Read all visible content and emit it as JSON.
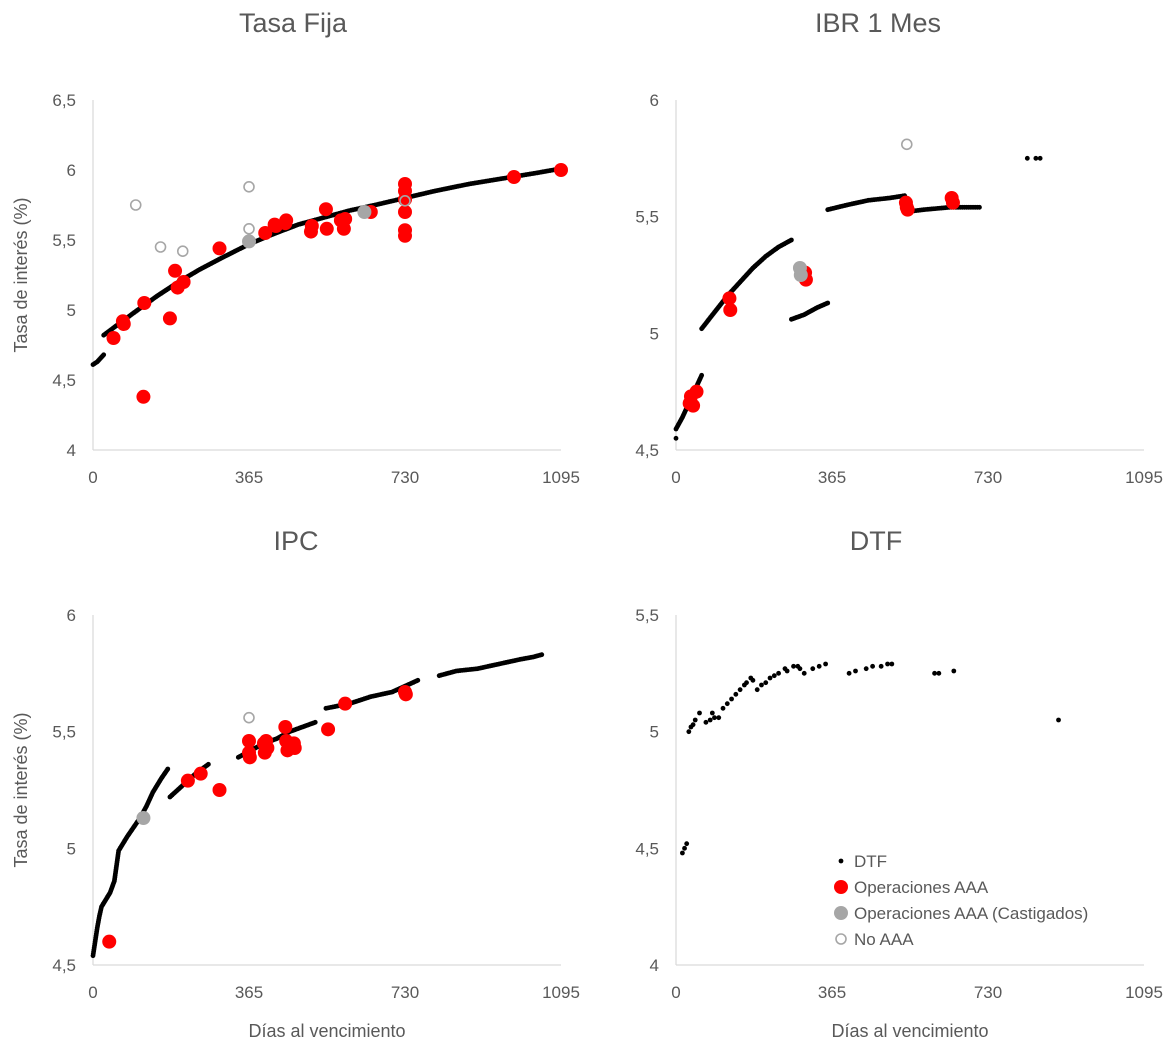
{
  "chart_data": [
    {
      "type": "scatter",
      "title": "Tasa Fija",
      "xlabel": "",
      "ylabel": "Tasa de interés (%)",
      "xlim": [
        0,
        1095
      ],
      "ylim": [
        4,
        6.5
      ],
      "xticks": [
        0,
        365,
        730,
        1095
      ],
      "xtick_labels": [
        "0",
        "365",
        "730",
        "1095"
      ],
      "yticks": [
        4,
        4.5,
        5,
        5.5,
        6,
        6.5
      ],
      "ytick_labels": [
        "4",
        "4,5",
        "5",
        "5,5",
        "6",
        "6,5"
      ],
      "grid": false,
      "curve_segments": [
        [
          [
            0,
            4.61
          ],
          [
            10,
            4.63
          ],
          [
            25,
            4.68
          ]
        ],
        [
          [
            25,
            4.82
          ],
          [
            60,
            4.9
          ],
          [
            100,
            4.99
          ],
          [
            150,
            5.1
          ],
          [
            200,
            5.2
          ],
          [
            250,
            5.29
          ],
          [
            300,
            5.37
          ],
          [
            365,
            5.47
          ],
          [
            420,
            5.54
          ],
          [
            480,
            5.61
          ],
          [
            540,
            5.66
          ],
          [
            600,
            5.71
          ],
          [
            660,
            5.75
          ],
          [
            730,
            5.8
          ],
          [
            800,
            5.85
          ],
          [
            880,
            5.9
          ],
          [
            960,
            5.94
          ],
          [
            1040,
            5.98
          ],
          [
            1095,
            6.01
          ]
        ]
      ],
      "series": [
        {
          "name": "Operaciones AAA",
          "points": [
            [
              48,
              4.8
            ],
            [
              70,
              4.92
            ],
            [
              72,
              4.9
            ],
            [
              120,
              5.05
            ],
            [
              118,
              4.38
            ],
            [
              180,
              4.94
            ],
            [
              192,
              5.28
            ],
            [
              198,
              5.16
            ],
            [
              212,
              5.2
            ],
            [
              296,
              5.44
            ],
            [
              403,
              5.55
            ],
            [
              425,
              5.61
            ],
            [
              428,
              5.6
            ],
            [
              450,
              5.62
            ],
            [
              452,
              5.64
            ],
            [
              510,
              5.56
            ],
            [
              512,
              5.6
            ],
            [
              545,
              5.72
            ],
            [
              547,
              5.58
            ],
            [
              580,
              5.64
            ],
            [
              587,
              5.58
            ],
            [
              590,
              5.65
            ],
            [
              650,
              5.7
            ],
            [
              730,
              5.9
            ],
            [
              730,
              5.85
            ],
            [
              730,
              5.79
            ],
            [
              730,
              5.7
            ],
            [
              730,
              5.57
            ],
            [
              730,
              5.53
            ],
            [
              985,
              5.95
            ],
            [
              1095,
              6.0
            ]
          ]
        },
        {
          "name": "Operaciones AAA (Castigados)",
          "points": [
            [
              365,
              5.49
            ],
            [
              635,
              5.7
            ]
          ]
        },
        {
          "name": "No AAA",
          "points": [
            [
              100,
              5.75
            ],
            [
              158,
              5.45
            ],
            [
              210,
              5.42
            ],
            [
              365,
              5.88
            ],
            [
              365,
              5.58
            ],
            [
              730,
              5.78
            ]
          ]
        }
      ]
    },
    {
      "type": "scatter",
      "title": "IBR 1 Mes",
      "xlabel": "",
      "ylabel": "",
      "xlim": [
        0,
        1095
      ],
      "ylim": [
        4.5,
        6
      ],
      "xticks": [
        0,
        365,
        730,
        1095
      ],
      "xtick_labels": [
        "0",
        "365",
        "730",
        "1095"
      ],
      "yticks": [
        4.5,
        5,
        5.5,
        6
      ],
      "ytick_labels": [
        "4,5",
        "5",
        "5,5",
        "6"
      ],
      "grid": false,
      "curve_segments": [
        [
          [
            0,
            4.59
          ],
          [
            15,
            4.64
          ],
          [
            30,
            4.7
          ],
          [
            45,
            4.76
          ],
          [
            60,
            4.82
          ]
        ],
        [
          [
            60,
            5.02
          ],
          [
            90,
            5.09
          ],
          [
            120,
            5.16
          ],
          [
            150,
            5.22
          ],
          [
            180,
            5.28
          ],
          [
            210,
            5.33
          ],
          [
            240,
            5.37
          ],
          [
            270,
            5.4
          ]
        ],
        [
          [
            270,
            5.06
          ],
          [
            300,
            5.08
          ],
          [
            330,
            5.11
          ],
          [
            355,
            5.13
          ]
        ],
        [
          [
            355,
            5.53
          ],
          [
            400,
            5.55
          ],
          [
            450,
            5.57
          ],
          [
            500,
            5.58
          ],
          [
            535,
            5.59
          ]
        ],
        [
          [
            535,
            5.52
          ],
          [
            580,
            5.53
          ],
          [
            640,
            5.54
          ],
          [
            710,
            5.54
          ]
        ]
      ],
      "isolated_points": [
        [
          0,
          4.55
        ],
        [
          822,
          5.75
        ],
        [
          842,
          5.75
        ],
        [
          852,
          5.75
        ]
      ],
      "series": [
        {
          "name": "Operaciones AAA",
          "points": [
            [
              32,
              4.7
            ],
            [
              35,
              4.73
            ],
            [
              40,
              4.69
            ],
            [
              48,
              4.75
            ],
            [
              125,
              5.15
            ],
            [
              127,
              5.1
            ],
            [
              302,
              5.26
            ],
            [
              304,
              5.23
            ],
            [
              538,
              5.56
            ],
            [
              540,
              5.54
            ],
            [
              542,
              5.53
            ],
            [
              645,
              5.58
            ],
            [
              648,
              5.56
            ]
          ]
        },
        {
          "name": "Operaciones AAA (Castigados)",
          "points": [
            [
              290,
              5.28
            ],
            [
              292,
              5.25
            ]
          ]
        },
        {
          "name": "No AAA",
          "points": [
            [
              540,
              5.81
            ]
          ]
        }
      ]
    },
    {
      "type": "scatter",
      "title": "IPC",
      "xlabel": "Días al vencimiento",
      "ylabel": "Tasa de interés (%)",
      "xlim": [
        0,
        1095
      ],
      "ylim": [
        4.5,
        6
      ],
      "xticks": [
        0,
        365,
        730,
        1095
      ],
      "xtick_labels": [
        "0",
        "365",
        "730",
        "1095"
      ],
      "yticks": [
        4.5,
        5,
        5.5,
        6
      ],
      "ytick_labels": [
        "4,5",
        "5",
        "5,5",
        "6"
      ],
      "grid": false,
      "curve_segments": [
        [
          [
            0,
            4.54
          ],
          [
            5,
            4.6
          ],
          [
            10,
            4.66
          ],
          [
            15,
            4.71
          ],
          [
            20,
            4.75
          ],
          [
            30,
            4.78
          ],
          [
            40,
            4.81
          ],
          [
            50,
            4.86
          ],
          [
            60,
            4.99
          ],
          [
            80,
            5.05
          ],
          [
            95,
            5.09
          ],
          [
            110,
            5.13
          ],
          [
            125,
            5.18
          ],
          [
            140,
            5.24
          ],
          [
            160,
            5.3
          ],
          [
            175,
            5.34
          ]
        ],
        [
          [
            180,
            5.22
          ],
          [
            210,
            5.27
          ],
          [
            240,
            5.32
          ],
          [
            270,
            5.36
          ]
        ],
        [
          [
            340,
            5.39
          ],
          [
            370,
            5.42
          ],
          [
            400,
            5.45
          ],
          [
            430,
            5.47
          ],
          [
            460,
            5.5
          ],
          [
            490,
            5.52
          ],
          [
            520,
            5.54
          ]
        ],
        [
          [
            545,
            5.6
          ],
          [
            600,
            5.62
          ],
          [
            650,
            5.65
          ],
          [
            700,
            5.67
          ],
          [
            760,
            5.72
          ]
        ],
        [
          [
            810,
            5.74
          ],
          [
            850,
            5.76
          ],
          [
            900,
            5.77
          ],
          [
            950,
            5.79
          ],
          [
            1000,
            5.81
          ],
          [
            1030,
            5.82
          ],
          [
            1050,
            5.83
          ]
        ]
      ],
      "series": [
        {
          "name": "Operaciones AAA",
          "points": [
            [
              38,
              4.6
            ],
            [
              222,
              5.29
            ],
            [
              252,
              5.32
            ],
            [
              296,
              5.25
            ],
            [
              365,
              5.46
            ],
            [
              365,
              5.41
            ],
            [
              367,
              5.39
            ],
            [
              400,
              5.45
            ],
            [
              402,
              5.41
            ],
            [
              405,
              5.46
            ],
            [
              408,
              5.43
            ],
            [
              450,
              5.52
            ],
            [
              452,
              5.46
            ],
            [
              455,
              5.42
            ],
            [
              460,
              5.44
            ],
            [
              470,
              5.45
            ],
            [
              472,
              5.43
            ],
            [
              550,
              5.51
            ],
            [
              590,
              5.62
            ],
            [
              730,
              5.67
            ],
            [
              732,
              5.66
            ]
          ]
        },
        {
          "name": "Operaciones AAA (Castigados)",
          "points": [
            [
              118,
              5.13
            ]
          ]
        },
        {
          "name": "No AAA",
          "points": [
            [
              365,
              5.56
            ]
          ]
        }
      ]
    },
    {
      "type": "scatter",
      "title": "DTF",
      "xlabel": "Días al vencimiento",
      "ylabel": "",
      "xlim": [
        0,
        1095
      ],
      "ylim": [
        4,
        5.5
      ],
      "xticks": [
        0,
        365,
        730,
        1095
      ],
      "xtick_labels": [
        "0",
        "365",
        "730",
        "1095"
      ],
      "yticks": [
        4,
        4.5,
        5,
        5.5
      ],
      "ytick_labels": [
        "4",
        "4,5",
        "5",
        "5,5"
      ],
      "grid": false,
      "legend": {
        "placement": "bottom-right",
        "entries": [
          "DTF",
          "Operaciones AAA",
          "Operaciones AAA (Castigados)",
          "No AAA"
        ]
      },
      "series": [
        {
          "name": "DTF",
          "points": [
            [
              15,
              4.48
            ],
            [
              20,
              4.5
            ],
            [
              25,
              4.52
            ],
            [
              30,
              5.0
            ],
            [
              35,
              5.02
            ],
            [
              40,
              5.03
            ],
            [
              45,
              5.05
            ],
            [
              55,
              5.08
            ],
            [
              70,
              5.04
            ],
            [
              80,
              5.05
            ],
            [
              85,
              5.08
            ],
            [
              90,
              5.06
            ],
            [
              100,
              5.06
            ],
            [
              110,
              5.1
            ],
            [
              120,
              5.12
            ],
            [
              130,
              5.14
            ],
            [
              140,
              5.16
            ],
            [
              150,
              5.18
            ],
            [
              160,
              5.2
            ],
            [
              165,
              5.21
            ],
            [
              175,
              5.23
            ],
            [
              180,
              5.22
            ],
            [
              190,
              5.18
            ],
            [
              200,
              5.2
            ],
            [
              210,
              5.21
            ],
            [
              220,
              5.23
            ],
            [
              230,
              5.24
            ],
            [
              240,
              5.25
            ],
            [
              255,
              5.27
            ],
            [
              260,
              5.26
            ],
            [
              275,
              5.28
            ],
            [
              285,
              5.28
            ],
            [
              290,
              5.27
            ],
            [
              300,
              5.25
            ],
            [
              320,
              5.27
            ],
            [
              335,
              5.28
            ],
            [
              350,
              5.29
            ],
            [
              405,
              5.25
            ],
            [
              420,
              5.26
            ],
            [
              445,
              5.27
            ],
            [
              460,
              5.28
            ],
            [
              480,
              5.28
            ],
            [
              495,
              5.29
            ],
            [
              505,
              5.29
            ],
            [
              605,
              5.25
            ],
            [
              615,
              5.25
            ],
            [
              650,
              5.26
            ],
            [
              895,
              5.05
            ]
          ]
        }
      ]
    }
  ],
  "colors": {
    "curve": "#000000",
    "aaa": "#ff0000",
    "castigados": "#a6a6a6",
    "no_aaa": "#a6a6a6",
    "axis": "#d9d9d9",
    "text": "#595959"
  }
}
